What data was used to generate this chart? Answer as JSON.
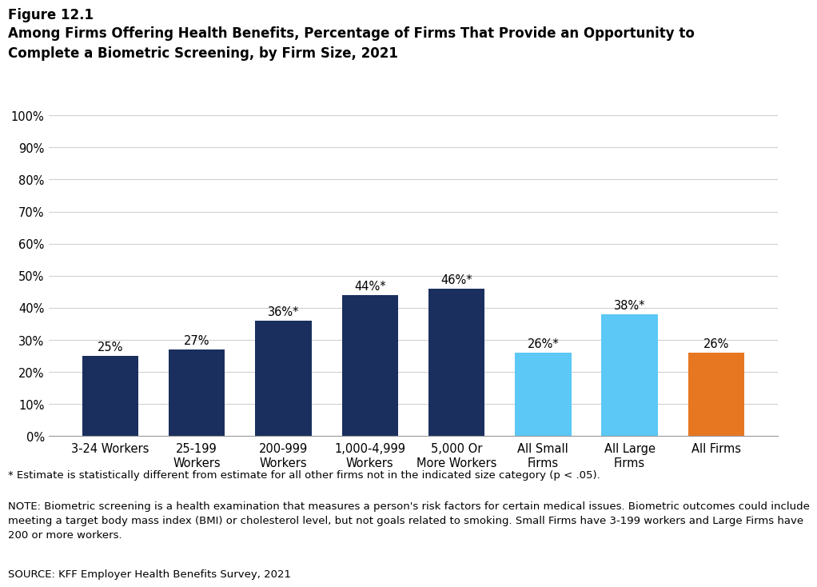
{
  "figure_label": "Figure 12.1",
  "title": "Among Firms Offering Health Benefits, Percentage of Firms That Provide an Opportunity to\nComplete a Biometric Screening, by Firm Size, 2021",
  "categories": [
    "3-24 Workers",
    "25-199\nWorkers",
    "200-999\nWorkers",
    "1,000-4,999\nWorkers",
    "5,000 Or\nMore Workers",
    "All Small\nFirms",
    "All Large\nFirms",
    "All Firms"
  ],
  "values": [
    25,
    27,
    36,
    44,
    46,
    26,
    38,
    26
  ],
  "labels": [
    "25%",
    "27%",
    "36%*",
    "44%*",
    "46%*",
    "26%*",
    "38%*",
    "26%"
  ],
  "bar_colors": [
    "#1a2f5e",
    "#1a2f5e",
    "#1a2f5e",
    "#1a2f5e",
    "#1a2f5e",
    "#5bc8f5",
    "#5bc8f5",
    "#e87722"
  ],
  "ylim": [
    0,
    100
  ],
  "yticks": [
    0,
    10,
    20,
    30,
    40,
    50,
    60,
    70,
    80,
    90,
    100
  ],
  "ytick_labels": [
    "0%",
    "10%",
    "20%",
    "30%",
    "40%",
    "50%",
    "60%",
    "70%",
    "80%",
    "90%",
    "100%"
  ],
  "background_color": "#ffffff",
  "footnote1": "* Estimate is statistically different from estimate for all other firms not in the indicated size category (p < .05).",
  "footnote2": "NOTE: Biometric screening is a health examination that measures a person's risk factors for certain medical issues. Biometric outcomes could include\nmeeting a target body mass index (BMI) or cholesterol level, but not goals related to smoking. Small Firms have 3-199 workers and Large Firms have\n200 or more workers.",
  "footnote3": "SOURCE: KFF Employer Health Benefits Survey, 2021",
  "figure_label_fontsize": 12,
  "title_fontsize": 12,
  "tick_fontsize": 10.5,
  "label_fontsize": 10.5,
  "footnote_fontsize": 9.5
}
